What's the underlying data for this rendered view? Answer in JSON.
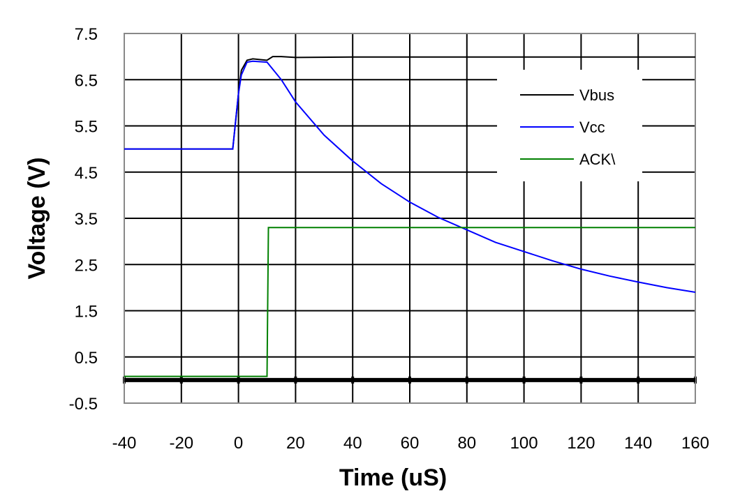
{
  "chart_data": {
    "type": "line",
    "title": "",
    "xlabel": "Time (uS)",
    "ylabel": "Voltage (V)",
    "xlim": [
      -40,
      160
    ],
    "ylim": [
      -0.5,
      7.5
    ],
    "x_ticks": [
      -40,
      -20,
      0,
      20,
      40,
      60,
      80,
      100,
      120,
      140,
      160
    ],
    "y_ticks": [
      7.5,
      6.5,
      5.5,
      4.5,
      3.5,
      2.5,
      1.5,
      0.5,
      -0.5
    ],
    "grid": true,
    "legend_placement": "top-right",
    "series": [
      {
        "name": "Vbus",
        "color": "#000000",
        "points": [
          [
            -40,
            5.0
          ],
          [
            -2,
            5.0
          ],
          [
            -1,
            5.6
          ],
          [
            0,
            6.2
          ],
          [
            1,
            6.7
          ],
          [
            3,
            6.92
          ],
          [
            5,
            6.95
          ],
          [
            10,
            6.92
          ],
          [
            12,
            7.0
          ],
          [
            15,
            7.0
          ],
          [
            20,
            6.98
          ],
          [
            40,
            6.99
          ],
          [
            60,
            6.99
          ],
          [
            80,
            6.99
          ],
          [
            100,
            6.99
          ],
          [
            120,
            6.99
          ],
          [
            140,
            6.99
          ],
          [
            160,
            6.99
          ]
        ]
      },
      {
        "name": "Vcc",
        "color": "#0000ff",
        "points": [
          [
            -40,
            5.0
          ],
          [
            -2,
            5.0
          ],
          [
            -1,
            5.6
          ],
          [
            0,
            6.2
          ],
          [
            1,
            6.6
          ],
          [
            3,
            6.88
          ],
          [
            5,
            6.9
          ],
          [
            10,
            6.88
          ],
          [
            15,
            6.5
          ],
          [
            20,
            6.02
          ],
          [
            30,
            5.3
          ],
          [
            40,
            4.74
          ],
          [
            50,
            4.25
          ],
          [
            60,
            3.85
          ],
          [
            70,
            3.52
          ],
          [
            80,
            3.25
          ],
          [
            90,
            2.98
          ],
          [
            100,
            2.78
          ],
          [
            110,
            2.58
          ],
          [
            120,
            2.4
          ],
          [
            130,
            2.25
          ],
          [
            140,
            2.12
          ],
          [
            150,
            2.0
          ],
          [
            160,
            1.9
          ]
        ]
      },
      {
        "name": "ACK\\",
        "color": "#008000",
        "points": [
          [
            -40,
            0.08
          ],
          [
            10,
            0.08
          ],
          [
            10.5,
            3.3
          ],
          [
            160,
            3.3
          ]
        ]
      }
    ]
  }
}
